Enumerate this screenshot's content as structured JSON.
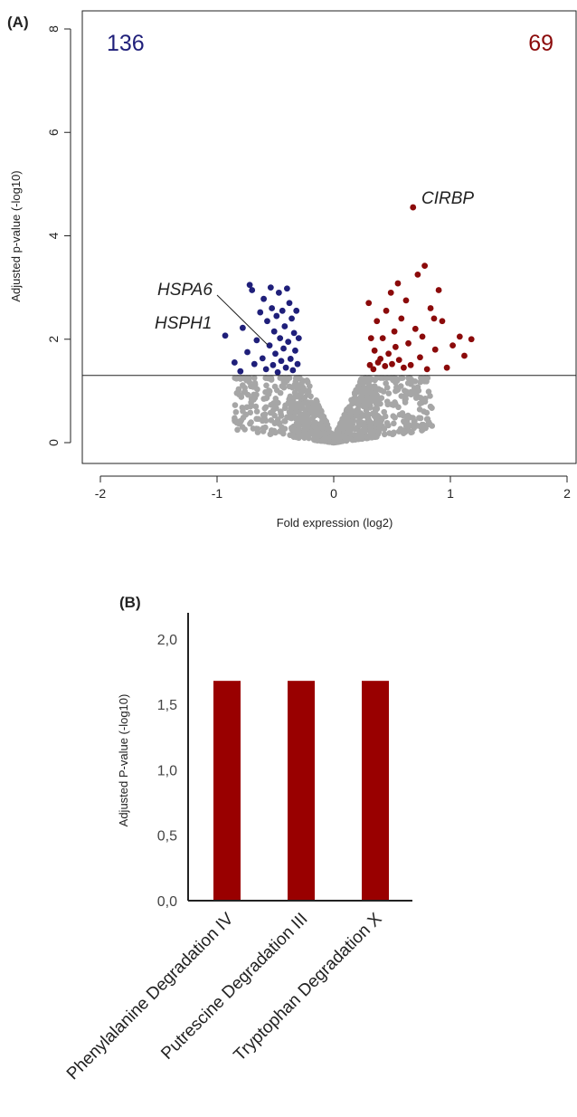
{
  "colors": {
    "down": "#1f1f7a",
    "up": "#8b0a0a",
    "nonsig": "#a6a6a6",
    "bar": "#990000",
    "axis": "#222222"
  },
  "chart_data": [
    {
      "type": "scatter",
      "panel_label": "(A)",
      "xlabel": "Fold expression (log2)",
      "ylabel": "Adjusted p-value (-log10)",
      "xlim": [
        -2,
        2
      ],
      "ylim": [
        0,
        8
      ],
      "xticks": [
        -2,
        -1,
        0,
        1,
        2
      ],
      "yticks": [
        0,
        2,
        4,
        6,
        8
      ],
      "threshold_y": 1.3,
      "grid": false,
      "counts": {
        "down": "136",
        "up": "69"
      },
      "annotations": [
        {
          "label": "CIRBP",
          "x": 0.68,
          "y": 4.55
        },
        {
          "label": "HSPA6",
          "x": -0.56,
          "y": 2.0
        },
        {
          "label": "HSPH1",
          "x": -0.72,
          "y": 2.25
        }
      ],
      "series": [
        {
          "group": "down",
          "points": [
            [
              -0.93,
              2.07
            ],
            [
              -0.85,
              1.55
            ],
            [
              -0.8,
              1.38
            ],
            [
              -0.78,
              2.22
            ],
            [
              -0.74,
              1.75
            ],
            [
              -0.72,
              3.05
            ],
            [
              -0.7,
              2.95
            ],
            [
              -0.68,
              1.52
            ],
            [
              -0.66,
              1.98
            ],
            [
              -0.63,
              2.52
            ],
            [
              -0.61,
              1.63
            ],
            [
              -0.6,
              2.78
            ],
            [
              -0.58,
              1.42
            ],
            [
              -0.57,
              2.35
            ],
            [
              -0.55,
              1.88
            ],
            [
              -0.54,
              3.0
            ],
            [
              -0.53,
              2.6
            ],
            [
              -0.52,
              1.5
            ],
            [
              -0.51,
              2.15
            ],
            [
              -0.5,
              1.72
            ],
            [
              -0.49,
              2.45
            ],
            [
              -0.48,
              1.36
            ],
            [
              -0.47,
              2.9
            ],
            [
              -0.46,
              2.02
            ],
            [
              -0.45,
              1.58
            ],
            [
              -0.44,
              2.55
            ],
            [
              -0.43,
              1.82
            ],
            [
              -0.42,
              2.25
            ],
            [
              -0.41,
              1.45
            ],
            [
              -0.4,
              2.98
            ],
            [
              -0.39,
              1.95
            ],
            [
              -0.38,
              2.7
            ],
            [
              -0.37,
              1.62
            ],
            [
              -0.36,
              2.4
            ],
            [
              -0.35,
              1.4
            ],
            [
              -0.34,
              2.12
            ],
            [
              -0.33,
              1.78
            ],
            [
              -0.32,
              2.55
            ],
            [
              -0.31,
              1.52
            ],
            [
              -0.3,
              2.02
            ]
          ]
        },
        {
          "group": "up",
          "points": [
            [
              0.3,
              2.7
            ],
            [
              0.31,
              1.5
            ],
            [
              0.32,
              2.02
            ],
            [
              0.34,
              1.42
            ],
            [
              0.35,
              1.78
            ],
            [
              0.37,
              2.35
            ],
            [
              0.38,
              1.55
            ],
            [
              0.4,
              1.62
            ],
            [
              0.42,
              2.02
            ],
            [
              0.44,
              1.48
            ],
            [
              0.45,
              2.55
            ],
            [
              0.47,
              1.72
            ],
            [
              0.49,
              2.9
            ],
            [
              0.5,
              1.52
            ],
            [
              0.52,
              2.15
            ],
            [
              0.53,
              1.85
            ],
            [
              0.55,
              3.08
            ],
            [
              0.56,
              1.6
            ],
            [
              0.58,
              2.4
            ],
            [
              0.6,
              1.45
            ],
            [
              0.62,
              2.75
            ],
            [
              0.64,
              1.92
            ],
            [
              0.66,
              1.5
            ],
            [
              0.68,
              4.55
            ],
            [
              0.7,
              2.2
            ],
            [
              0.72,
              3.25
            ],
            [
              0.74,
              1.65
            ],
            [
              0.76,
              2.05
            ],
            [
              0.78,
              3.42
            ],
            [
              0.8,
              1.42
            ],
            [
              0.83,
              2.6
            ],
            [
              0.87,
              1.8
            ],
            [
              0.9,
              2.95
            ],
            [
              0.93,
              2.35
            ],
            [
              0.97,
              1.45
            ],
            [
              1.02,
              1.88
            ],
            [
              1.08,
              2.05
            ],
            [
              1.12,
              1.68
            ],
            [
              1.18,
              2.0
            ],
            [
              0.86,
              2.4
            ]
          ]
        }
      ]
    },
    {
      "type": "bar",
      "panel_label": "(B)",
      "ylabel": "Adjusted P-value (-log10)",
      "categories": [
        "Phenylalanine Degradation IV",
        "Putrescine Degradation III",
        "Tryptophan Degradation X"
      ],
      "values": [
        1.68,
        1.68,
        1.68
      ],
      "ylim": [
        0,
        2.2
      ],
      "yticks": [
        0,
        0.5,
        1.0,
        1.5,
        2.0
      ],
      "ytick_labels": [
        "0,0",
        "0,5",
        "1,0",
        "1,5",
        "2,0"
      ]
    }
  ]
}
